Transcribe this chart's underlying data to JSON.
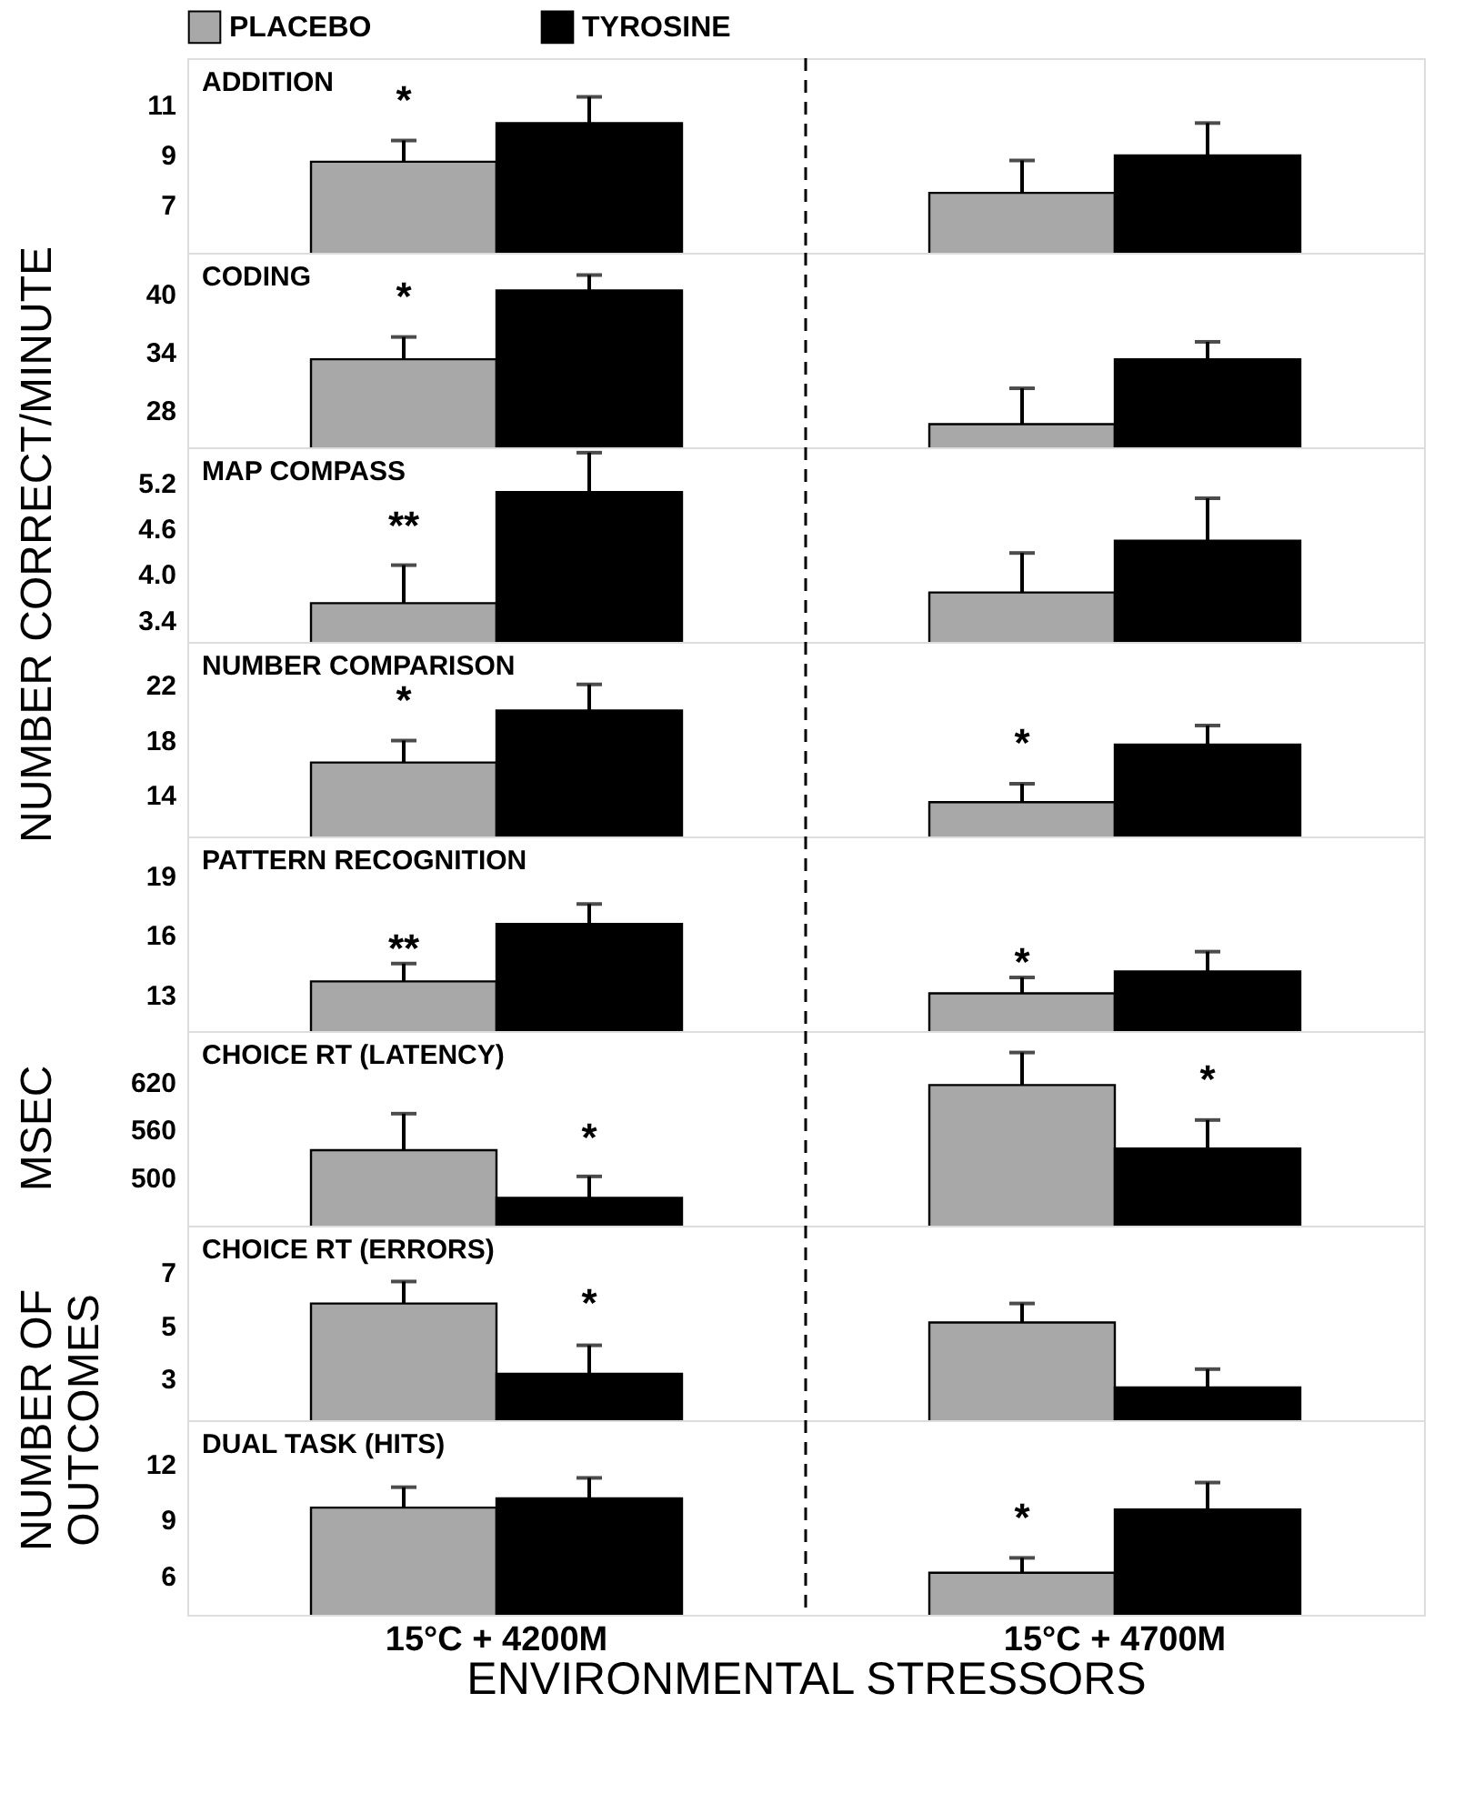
{
  "chart_data": [
    {
      "type": "bar",
      "title": "ADDITION",
      "ylabel": "NUMBER CORRECT/MINUTE",
      "legend": "top",
      "tick_labels": "y",
      "categories": [
        "15°C + 4200M",
        "15°C + 4700M"
      ],
      "ylim": [
        5.1,
        12.9
      ],
      "yticks": [
        7,
        9,
        11
      ],
      "series": [
        {
          "name": "PLACEBO",
          "color": "#a8a8a8",
          "values": [
            8.75,
            7.5
          ],
          "errors": [
            [
              8.75,
              9.6
            ],
            [
              7.5,
              8.8
            ]
          ]
        },
        {
          "name": "TYROSINE",
          "color": "#000000",
          "values": [
            10.3,
            9.0
          ],
          "errors": [
            [
              10.3,
              11.35
            ],
            [
              9.0,
              10.3
            ]
          ]
        }
      ],
      "annotations": [
        {
          "text": "*",
          "x": "15°C + 4200M",
          "y": 10.6
        }
      ]
    },
    {
      "type": "bar",
      "title": "CODING",
      "tick_labels": "y",
      "categories": [
        "15°C + 4200M",
        "15°C + 4700M"
      ],
      "ylim": [
        24.2,
        44.3
      ],
      "yticks": [
        28,
        34,
        40
      ],
      "series": [
        {
          "color": "#a8a8a8",
          "values": [
            33.3,
            26.6
          ],
          "errors": [
            [
              33.3,
              35.6
            ],
            [
              26.6,
              30.3
            ]
          ]
        },
        {
          "color": "#000000",
          "values": [
            40.4,
            33.3
          ],
          "errors": [
            [
              40.4,
              42.0
            ],
            [
              33.3,
              35.1
            ]
          ]
        }
      ],
      "annotations": [
        {
          "text": "*",
          "x": "15°C + 4200M",
          "y": 38.2
        }
      ]
    },
    {
      "type": "bar",
      "title": "MAP COMPASS",
      "tick_labels": "y",
      "categories": [
        "15°C + 4200M",
        "15°C + 4700M"
      ],
      "ylim": [
        3.12,
        5.68
      ],
      "yticks": [
        3.4,
        {
          "value": 4,
          "label": "4.0"
        },
        4.6,
        5.2
      ],
      "series": [
        {
          "color": "#a8a8a8",
          "values": [
            3.63,
            3.77
          ],
          "errors": [
            [
              3.63,
              4.13
            ],
            [
              3.77,
              4.29
            ]
          ]
        },
        {
          "color": "#000000",
          "values": [
            5.09,
            4.45
          ],
          "errors": [
            [
              5.09,
              5.61
            ],
            [
              4.45,
              5.01
            ]
          ]
        }
      ],
      "annotations": [
        {
          "text": "**",
          "x": "15°C + 4200M",
          "y": 4.45
        }
      ]
    },
    {
      "type": "bar",
      "title": "NUMBER COMPARISON",
      "tick_labels": "y",
      "categories": [
        "15°C + 4200M",
        "15°C + 4700M"
      ],
      "ylim": [
        11.0,
        25.2
      ],
      "yticks": [
        14,
        18,
        22
      ],
      "series": [
        {
          "color": "#a8a8a8",
          "values": [
            16.4,
            13.5
          ],
          "errors": [
            [
              16.4,
              18.0
            ],
            [
              13.5,
              14.85
            ]
          ]
        },
        {
          "color": "#000000",
          "values": [
            20.2,
            17.7
          ],
          "errors": [
            [
              20.2,
              22.1
            ],
            [
              17.7,
              19.1
            ]
          ]
        }
      ],
      "annotations": [
        {
          "text": "*",
          "x": "15°C + 4200M",
          "y": 19.8
        },
        {
          "text": "*",
          "x": "15°C + 4700M",
          "y": 16.7
        }
      ]
    },
    {
      "type": "bar",
      "title": "PATTERN RECOGNITION",
      "tick_labels": "y",
      "categories": [
        "15°C + 4200M",
        "15°C + 4700M"
      ],
      "ylim": [
        11.2,
        21.0
      ],
      "yticks": [
        13,
        16,
        19
      ],
      "series": [
        {
          "color": "#a8a8a8",
          "values": [
            13.7,
            13.1
          ],
          "errors": [
            [
              13.7,
              14.6
            ],
            [
              13.1,
              13.9
            ]
          ]
        },
        {
          "color": "#000000",
          "values": [
            16.6,
            14.2
          ],
          "errors": [
            [
              16.6,
              17.6
            ],
            [
              14.2,
              15.2
            ]
          ]
        }
      ],
      "annotations": [
        {
          "text": "**",
          "x": "15°C + 4200M",
          "y": 14.6
        },
        {
          "text": "*",
          "x": "15°C + 4700M",
          "y": 13.9
        }
      ]
    },
    {
      "type": "bar",
      "title": "CHOICE RT (LATENCY)",
      "ylabel": "MSEC",
      "tick_labels": "y",
      "categories": [
        "15°C + 4200M",
        "15°C + 4700M"
      ],
      "ylim": [
        440,
        685
      ],
      "yticks": [
        500,
        560,
        620
      ],
      "series": [
        {
          "color": "#a8a8a8",
          "values": [
            535,
            617
          ],
          "errors": [
            [
              535,
              581
            ],
            [
              617,
              658
            ]
          ]
        },
        {
          "color": "#000000",
          "values": [
            475,
            537
          ],
          "errors": [
            [
              475,
              502
            ],
            [
              537,
              573
            ]
          ]
        }
      ],
      "annotations": [
        {
          "text": "*",
          "x": "15°C + 4200M",
          "y": 532
        },
        {
          "text": "*",
          "x": "15°C + 4700M",
          "y": 605
        }
      ]
    },
    {
      "type": "bar",
      "title": "CHOICE RT (ERRORS)",
      "ylabel": "NUMBER OF\nOUTCOMES",
      "tick_labels": "y",
      "categories": [
        "15°C + 4200M",
        "15°C + 4700M"
      ],
      "ylim": [
        1.45,
        8.8
      ],
      "yticks": [
        3,
        5,
        7
      ],
      "series": [
        {
          "color": "#a8a8a8",
          "values": [
            5.86,
            5.14
          ],
          "errors": [
            [
              5.86,
              6.69
            ],
            [
              5.14,
              5.86
            ]
          ]
        },
        {
          "color": "#000000",
          "values": [
            3.2,
            2.69
          ],
          "errors": [
            [
              3.2,
              4.28
            ],
            [
              2.69,
              3.38
            ]
          ]
        }
      ],
      "annotations": [
        {
          "text": "*",
          "x": "15°C + 4200M",
          "y": 5.3
        }
      ]
    },
    {
      "type": "bar",
      "title": "DUAL TASK (HITS)",
      "xlabel": "ENVIRONMENTAL STRESSORS",
      "categories": [
        "15°C + 4200M",
        "15°C + 4700M"
      ],
      "ylim": [
        3.94,
        14.4
      ],
      "yticks": [
        6,
        9,
        12
      ],
      "series": [
        {
          "color": "#a8a8a8",
          "values": [
            9.7,
            6.2
          ],
          "errors": [
            [
              9.7,
              10.8
            ],
            [
              6.2,
              7.0
            ]
          ]
        },
        {
          "color": "#000000",
          "values": [
            10.2,
            9.6
          ],
          "errors": [
            [
              10.2,
              11.3
            ],
            [
              9.6,
              11.05
            ]
          ]
        }
      ],
      "annotations": [
        {
          "text": "*",
          "x": "15°C + 4700M",
          "y": 8.35
        }
      ]
    }
  ]
}
